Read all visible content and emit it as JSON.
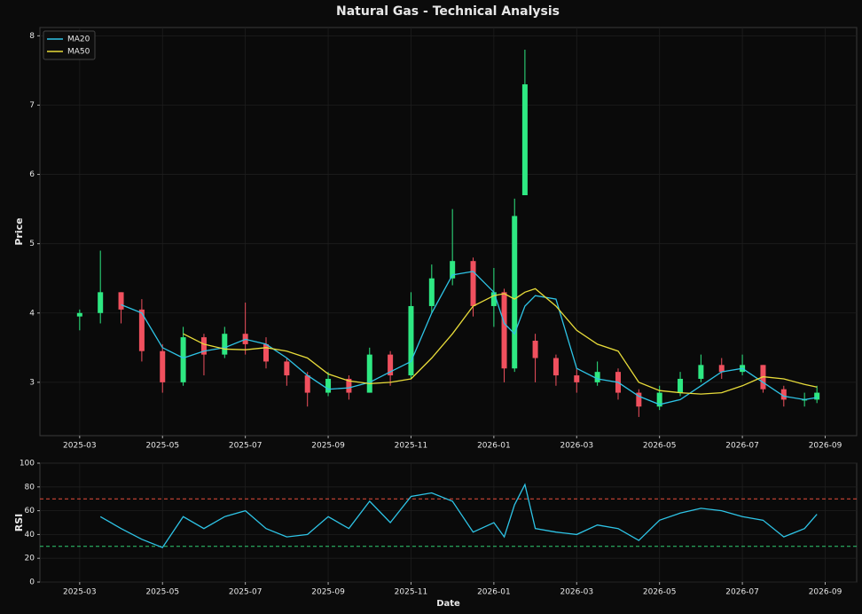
{
  "title": "Natural Gas - Technical Analysis",
  "chart_data": [
    {
      "type": "candlestick",
      "ylabel": "Price",
      "x": [
        0,
        0.5,
        1,
        1.5,
        2,
        2.5,
        3,
        3.5,
        4,
        4.5,
        5,
        5.5,
        6,
        6.5,
        7,
        7.5,
        8,
        8.5,
        9,
        9.5,
        10,
        10.25,
        10.5,
        10.75,
        11,
        11.5,
        12,
        12.5,
        13,
        13.5,
        14,
        14.5,
        15,
        15.5,
        16,
        16.5,
        17,
        17.5,
        17.8
      ],
      "open": [
        3.95,
        4.0,
        4.3,
        4.05,
        3.45,
        3.0,
        3.65,
        3.4,
        3.7,
        3.55,
        3.3,
        3.1,
        2.85,
        3.05,
        2.85,
        3.4,
        3.1,
        4.1,
        4.5,
        4.75,
        4.1,
        4.3,
        3.2,
        5.7,
        3.6,
        3.35,
        3.1,
        3.0,
        3.15,
        2.85,
        2.65,
        2.85,
        3.05,
        3.25,
        3.15,
        3.25,
        2.9,
        2.75,
        2.75
      ],
      "high": [
        4.05,
        4.9,
        4.3,
        4.2,
        3.55,
        3.8,
        3.7,
        3.8,
        4.15,
        3.65,
        3.35,
        3.15,
        3.15,
        3.1,
        3.5,
        3.45,
        4.3,
        4.7,
        5.5,
        4.8,
        4.65,
        4.35,
        5.65,
        7.8,
        3.7,
        3.4,
        3.2,
        3.3,
        3.2,
        2.9,
        2.95,
        3.15,
        3.4,
        3.35,
        3.4,
        3.25,
        2.95,
        2.85,
        2.95
      ],
      "low": [
        3.75,
        3.85,
        3.85,
        3.3,
        2.85,
        2.95,
        3.1,
        3.35,
        3.4,
        3.2,
        2.95,
        2.65,
        2.8,
        2.75,
        2.85,
        2.95,
        3.05,
        4.0,
        4.4,
        3.95,
        3.8,
        3.0,
        3.15,
        5.7,
        3.0,
        2.95,
        2.85,
        2.95,
        2.75,
        2.5,
        2.6,
        2.8,
        3.0,
        3.05,
        3.1,
        2.85,
        2.65,
        2.65,
        2.7
      ],
      "close": [
        4.0,
        4.3,
        4.05,
        3.45,
        3.0,
        3.65,
        3.4,
        3.7,
        3.55,
        3.3,
        3.1,
        2.85,
        3.05,
        2.85,
        3.4,
        3.1,
        4.1,
        4.5,
        4.75,
        4.1,
        4.3,
        3.2,
        5.4,
        7.3,
        3.35,
        3.1,
        3.0,
        3.15,
        2.85,
        2.65,
        2.85,
        3.05,
        3.25,
        3.15,
        3.25,
        2.9,
        2.75,
        2.75,
        2.85
      ],
      "up_color": "#2ee882",
      "down_color": "#f0505e",
      "series": [
        {
          "name": "MA20",
          "color": "#2ec4e6",
          "values": [
            null,
            null,
            4.12,
            4.0,
            3.5,
            3.35,
            3.45,
            3.5,
            3.62,
            3.55,
            3.35,
            3.1,
            2.9,
            2.92,
            3.0,
            3.15,
            3.3,
            4.0,
            4.55,
            4.6,
            4.3,
            3.85,
            3.7,
            4.1,
            4.25,
            4.2,
            3.2,
            3.05,
            3.0,
            2.8,
            2.68,
            2.75,
            2.95,
            3.15,
            3.2,
            3.0,
            2.8,
            2.75,
            2.78
          ]
        },
        {
          "name": "MA50",
          "color": "#e8dc3a",
          "values": [
            null,
            null,
            null,
            null,
            null,
            3.7,
            3.55,
            3.48,
            3.47,
            3.5,
            3.45,
            3.35,
            3.12,
            3.02,
            2.98,
            3.0,
            3.05,
            3.35,
            3.7,
            4.1,
            4.25,
            4.28,
            4.2,
            4.3,
            4.35,
            4.1,
            3.75,
            3.55,
            3.45,
            3.0,
            2.88,
            2.85,
            2.83,
            2.85,
            2.95,
            3.08,
            3.05,
            2.97,
            2.93
          ]
        }
      ],
      "xlim": [
        -0.96,
        18.76
      ],
      "ylim": [
        2.23,
        8.12
      ],
      "yticks": [
        3,
        4,
        5,
        6,
        7,
        8
      ],
      "xticks": [
        {
          "value": 0,
          "label": "2025-03"
        },
        {
          "value": 2,
          "label": "2025-05"
        },
        {
          "value": 4,
          "label": "2025-07"
        },
        {
          "value": 6,
          "label": "2025-09"
        },
        {
          "value": 8,
          "label": "2025-11"
        },
        {
          "value": 10,
          "label": "2026-01"
        },
        {
          "value": 12,
          "label": "2026-03"
        },
        {
          "value": 14,
          "label": "2026-05"
        },
        {
          "value": 16,
          "label": "2026-07"
        },
        {
          "value": 18,
          "label": "2026-09"
        }
      ],
      "grid": true,
      "legend": "upper left"
    },
    {
      "type": "line",
      "ylabel": "RSI",
      "xlabel": "Date",
      "x": [
        0,
        0.5,
        1,
        1.5,
        2,
        2.5,
        3,
        3.5,
        4,
        4.5,
        5,
        5.5,
        6,
        6.5,
        7,
        7.5,
        8,
        8.5,
        9,
        9.5,
        10,
        10.25,
        10.5,
        10.75,
        11,
        11.5,
        12,
        12.5,
        13,
        13.5,
        14,
        14.5,
        15,
        15.5,
        16,
        16.5,
        17,
        17.5,
        17.8
      ],
      "series": [
        {
          "color": "#2ec4e6",
          "values": [
            null,
            55,
            45,
            36,
            29,
            55,
            45,
            55,
            60,
            45,
            38,
            40,
            55,
            45,
            68,
            50,
            72,
            75,
            68,
            42,
            50,
            38,
            65,
            82,
            45,
            42,
            40,
            48,
            45,
            35,
            52,
            58,
            62,
            60,
            55,
            52,
            38,
            45,
            57
          ]
        }
      ],
      "levels": [
        {
          "value": 70,
          "color": "#e74c3c"
        },
        {
          "value": 30,
          "color": "#2ecc71"
        }
      ],
      "xlim": [
        -0.96,
        18.76
      ],
      "ylim": [
        0,
        100
      ],
      "yticks": [
        0,
        20,
        40,
        60,
        80,
        100
      ],
      "xticks": [
        {
          "value": 0,
          "label": "2025-03"
        },
        {
          "value": 2,
          "label": "2025-05"
        },
        {
          "value": 4,
          "label": "2025-07"
        },
        {
          "value": 6,
          "label": "2025-09"
        },
        {
          "value": 8,
          "label": "2025-11"
        },
        {
          "value": 10,
          "label": "2026-01"
        },
        {
          "value": 12,
          "label": "2026-03"
        },
        {
          "value": 14,
          "label": "2026-05"
        },
        {
          "value": 16,
          "label": "2026-07"
        },
        {
          "value": 18,
          "label": "2026-09"
        }
      ],
      "grid": true
    }
  ]
}
